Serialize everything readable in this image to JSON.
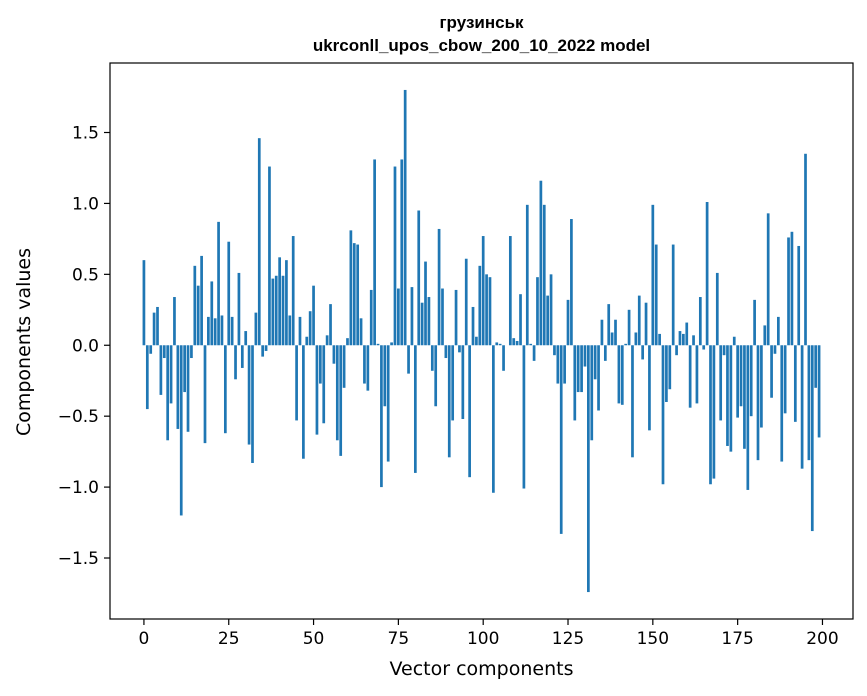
{
  "chart_data": {
    "type": "bar",
    "title": "грузинськ",
    "subtitle": "ukrconll_upos_cbow_200_10_2022 model",
    "xlabel": "Vector components",
    "ylabel": "Components values",
    "xlim": [
      -10,
      209
    ],
    "ylim": [
      -1.93,
      1.99
    ],
    "xticks": [
      0,
      25,
      50,
      75,
      100,
      125,
      150,
      175,
      200
    ],
    "yticks": [
      -1.5,
      -1.0,
      -0.5,
      0.0,
      0.5,
      1.0,
      1.5
    ],
    "ytick_labels": [
      "−1.5",
      "−1.0",
      "−0.5",
      "0.0",
      "0.5",
      "1.0",
      "1.5"
    ],
    "bar_color": "#1f77b4",
    "grid": false,
    "values": [
      0.6,
      -0.45,
      -0.06,
      0.23,
      0.27,
      -0.35,
      -0.09,
      -0.67,
      -0.41,
      0.34,
      -0.59,
      -1.2,
      -0.33,
      -0.61,
      -0.09,
      0.56,
      0.42,
      0.63,
      -0.69,
      0.2,
      0.45,
      0.19,
      0.87,
      0.21,
      -0.62,
      0.73,
      0.2,
      -0.24,
      0.51,
      -0.16,
      0.1,
      -0.7,
      -0.83,
      0.23,
      1.46,
      -0.08,
      -0.04,
      1.26,
      0.47,
      0.49,
      0.62,
      0.49,
      0.6,
      0.21,
      0.77,
      -0.53,
      0.2,
      -0.8,
      0.06,
      0.24,
      0.42,
      -0.63,
      -0.27,
      -0.55,
      0.07,
      0.29,
      -0.13,
      -0.67,
      -0.78,
      -0.3,
      0.05,
      0.81,
      0.72,
      0.71,
      0.19,
      -0.27,
      -0.32,
      0.39,
      1.31,
      0.01,
      -1.0,
      -0.43,
      -0.82,
      0.02,
      1.26,
      0.4,
      1.31,
      1.8,
      -0.2,
      0.41,
      -0.9,
      0.95,
      0.3,
      0.59,
      0.34,
      -0.18,
      -0.43,
      0.82,
      0.4,
      -0.09,
      -0.79,
      -0.53,
      0.39,
      -0.05,
      -0.52,
      0.61,
      -0.93,
      0.27,
      0.06,
      0.56,
      0.77,
      0.5,
      0.48,
      -1.04,
      0.02,
      0.01,
      -0.18,
      0.0,
      0.77,
      0.05,
      0.03,
      0.36,
      -1.01,
      0.99,
      0.01,
      -0.11,
      0.48,
      1.16,
      0.99,
      0.35,
      0.5,
      -0.07,
      -0.27,
      -1.33,
      -0.27,
      0.32,
      0.89,
      -0.53,
      -0.33,
      -0.33,
      -0.15,
      -1.74,
      -0.67,
      -0.24,
      -0.46,
      0.18,
      -0.11,
      0.29,
      0.09,
      0.18,
      -0.41,
      -0.42,
      0.01,
      0.25,
      -0.79,
      0.09,
      0.35,
      -0.1,
      0.3,
      -0.6,
      0.99,
      0.71,
      0.08,
      -0.98,
      -0.4,
      -0.31,
      0.71,
      -0.07,
      0.1,
      0.08,
      0.16,
      -0.44,
      0.07,
      -0.41,
      0.34,
      -0.03,
      1.01,
      -0.98,
      -0.94,
      0.51,
      -0.53,
      -0.07,
      -0.71,
      -0.75,
      0.06,
      -0.51,
      -0.43,
      -0.73,
      -1.02,
      -0.5,
      0.32,
      -0.81,
      -0.58,
      0.14,
      0.93,
      -0.37,
      -0.06,
      0.2,
      -0.82,
      -0.48,
      0.76,
      0.8,
      -0.54,
      0.7,
      -0.87,
      1.35,
      -0.81,
      -1.31,
      -0.3,
      -0.65
    ]
  }
}
